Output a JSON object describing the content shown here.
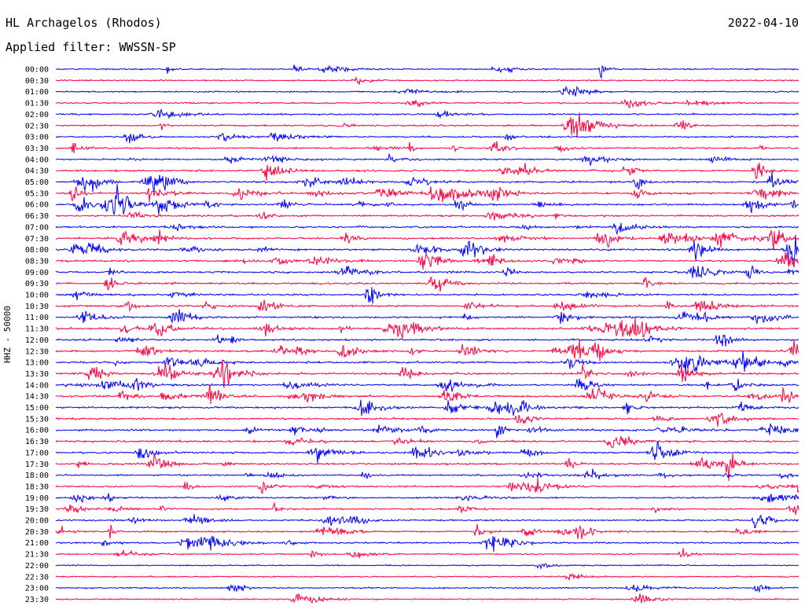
{
  "header": {
    "station": "HL Archagelos (Rhodos)",
    "date": "2022-04-10",
    "filter": "Applied filter: WWSSN-SP"
  },
  "chart_data": {
    "type": "line",
    "ylabel": "HHZ - 50000",
    "row_labels": [
      "00:00",
      "00:30",
      "01:00",
      "01:30",
      "02:00",
      "02:30",
      "03:00",
      "03:30",
      "04:00",
      "04:30",
      "05:00",
      "05:30",
      "06:00",
      "06:30",
      "07:00",
      "07:30",
      "08:00",
      "08:30",
      "09:00",
      "09:30",
      "10:00",
      "10:30",
      "11:00",
      "11:30",
      "12:00",
      "12:30",
      "13:00",
      "13:30",
      "14:00",
      "14:30",
      "15:00",
      "15:30",
      "16:00",
      "16:30",
      "17:00",
      "17:30",
      "18:00",
      "18:30",
      "19:00",
      "19:30",
      "20:00",
      "20:30",
      "21:00",
      "21:30",
      "22:00",
      "22:30",
      "23:00",
      "23:30"
    ],
    "series_colors": [
      "#0000ff",
      "#ff0040"
    ],
    "color_order": "alternating, starting with blue at 00:00",
    "x_range_minutes": [
      0,
      30
    ],
    "grid": false
  }
}
